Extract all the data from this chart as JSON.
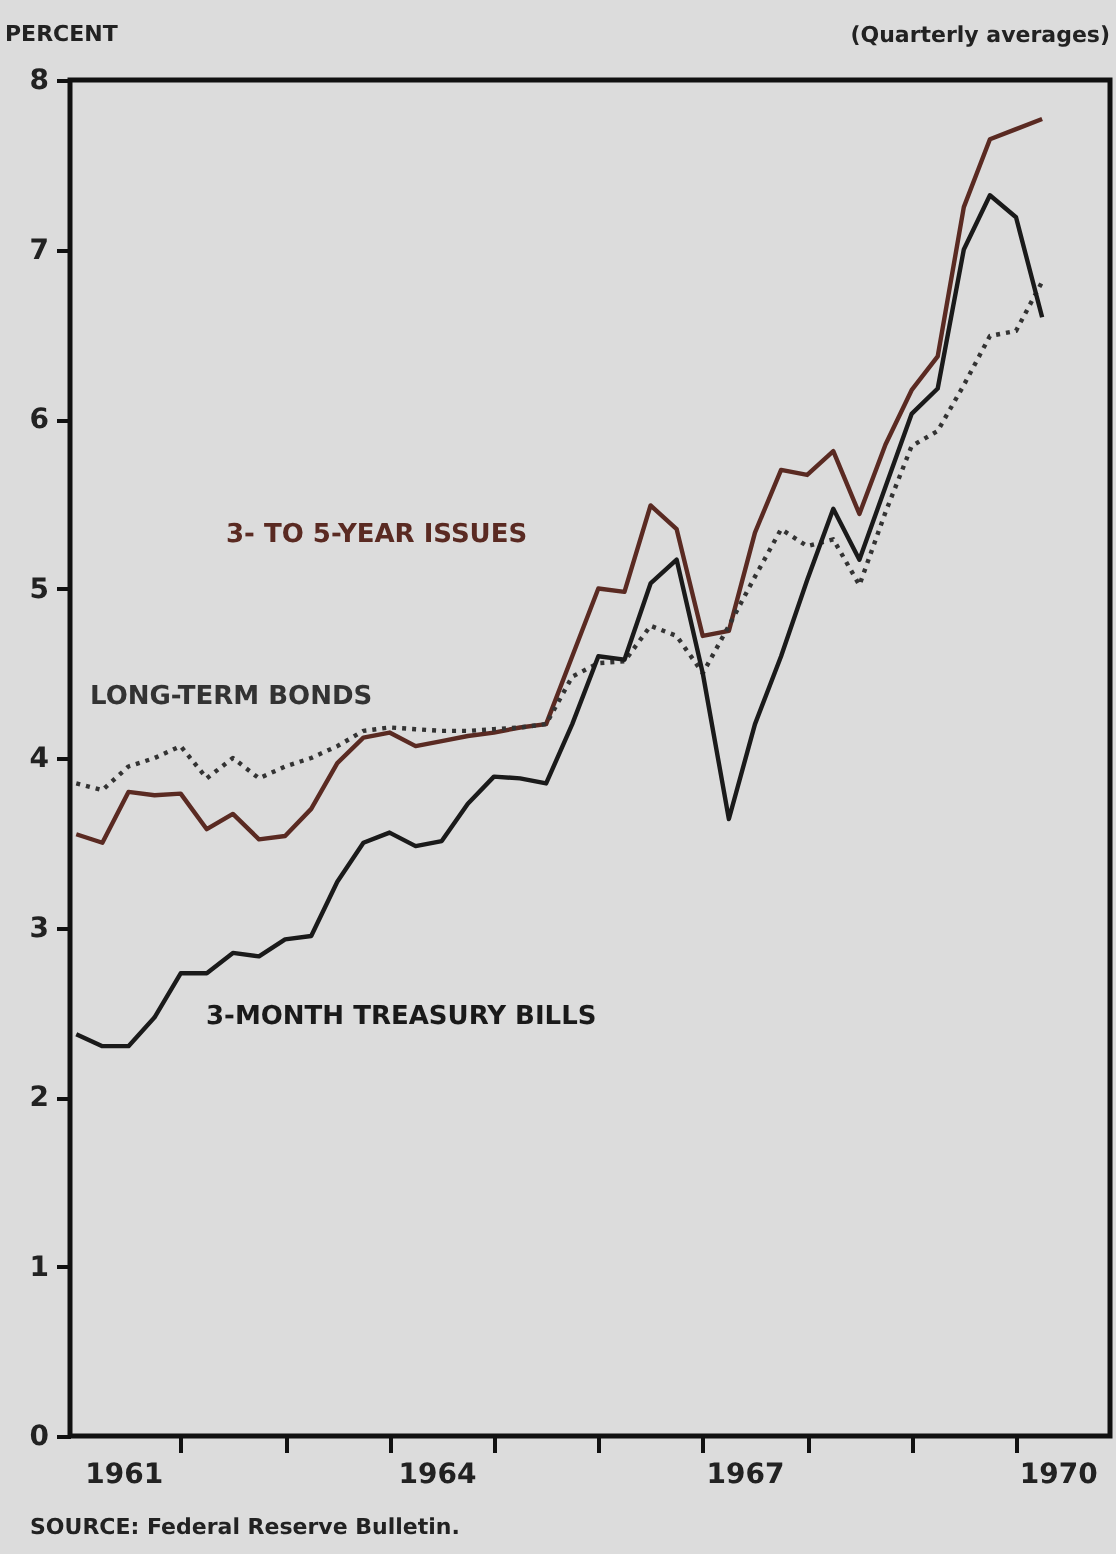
{
  "chart_data": {
    "type": "line",
    "ylabel": "PERCENT",
    "subtitle": "(Quarterly averages)",
    "annotations": [
      "SOURCE: Federal Reserve Bulletin."
    ],
    "x": [
      1961,
      1961.25,
      1961.5,
      1961.75,
      1962,
      1962.25,
      1962.5,
      1962.75,
      1963,
      1963.25,
      1963.5,
      1963.75,
      1964,
      1964.25,
      1964.5,
      1964.75,
      1965,
      1965.25,
      1965.5,
      1965.75,
      1966,
      1966.25,
      1966.5,
      1966.75,
      1967,
      1967.25,
      1967.5,
      1967.75,
      1968,
      1968.25,
      1968.5,
      1968.75,
      1969,
      1969.25,
      1969.5,
      1969.75,
      1970,
      1970.25
    ],
    "xlim": [
      1960.94,
      1970.9
    ],
    "xticks": [
      {
        "value": 1961.45,
        "label": "1961"
      },
      {
        "value": 1962,
        "label": null
      },
      {
        "value": 1963,
        "label": null
      },
      {
        "value": 1964,
        "label": null
      },
      {
        "value": 1964.45,
        "label": "1964"
      },
      {
        "value": 1965,
        "label": null
      },
      {
        "value": 1966,
        "label": null
      },
      {
        "value": 1967,
        "label": null
      },
      {
        "value": 1967.4,
        "label": "1967"
      },
      {
        "value": 1968,
        "label": null
      },
      {
        "value": 1969,
        "label": null
      },
      {
        "value": 1970,
        "label": null
      },
      {
        "value": 1970.4,
        "label": "1970"
      }
    ],
    "ylim": [
      0,
      8
    ],
    "yticks": [
      0,
      1,
      2,
      3,
      4,
      5,
      6,
      7,
      8
    ],
    "grid": false,
    "marker": "none",
    "series": [
      {
        "name": "3- TO 5-YEAR ISSUES",
        "color": "#5a2a22",
        "line_style": "solid",
        "values": [
          3.55,
          3.5,
          3.8,
          3.78,
          3.79,
          3.58,
          3.67,
          3.52,
          3.54,
          3.7,
          3.97,
          4.12,
          4.15,
          4.07,
          4.1,
          4.13,
          4.15,
          4.18,
          4.2,
          4.6,
          5.0,
          4.98,
          5.49,
          5.35,
          4.72,
          4.75,
          5.33,
          5.7,
          5.67,
          5.81,
          5.44,
          5.85,
          6.17,
          6.37,
          7.25,
          7.65,
          7.71,
          7.77
        ]
      },
      {
        "name": "LONG-TERM BONDS",
        "color": "#333333",
        "line_style": "dotted",
        "values": [
          3.85,
          3.81,
          3.95,
          4.0,
          4.07,
          3.88,
          4.0,
          3.88,
          3.95,
          4.0,
          4.07,
          4.16,
          4.18,
          4.17,
          4.16,
          4.16,
          4.17,
          4.18,
          4.2,
          4.48,
          4.56,
          4.57,
          4.78,
          4.72,
          4.5,
          4.78,
          5.07,
          5.35,
          5.25,
          5.29,
          5.02,
          5.45,
          5.84,
          5.93,
          6.2,
          6.49,
          6.52,
          6.81
        ]
      },
      {
        "name": "3-MONTH TREASURY BILLS",
        "color": "#1a1a1a",
        "line_style": "solid",
        "values": [
          2.37,
          2.3,
          2.3,
          2.47,
          2.73,
          2.73,
          2.85,
          2.83,
          2.93,
          2.95,
          3.27,
          3.5,
          3.56,
          3.48,
          3.51,
          3.73,
          3.89,
          3.88,
          3.85,
          4.2,
          4.6,
          4.58,
          5.03,
          5.17,
          4.5,
          3.64,
          4.2,
          4.6,
          5.05,
          5.47,
          5.17,
          5.6,
          6.03,
          6.18,
          7.0,
          7.32,
          7.19,
          6.6
        ]
      }
    ]
  }
}
